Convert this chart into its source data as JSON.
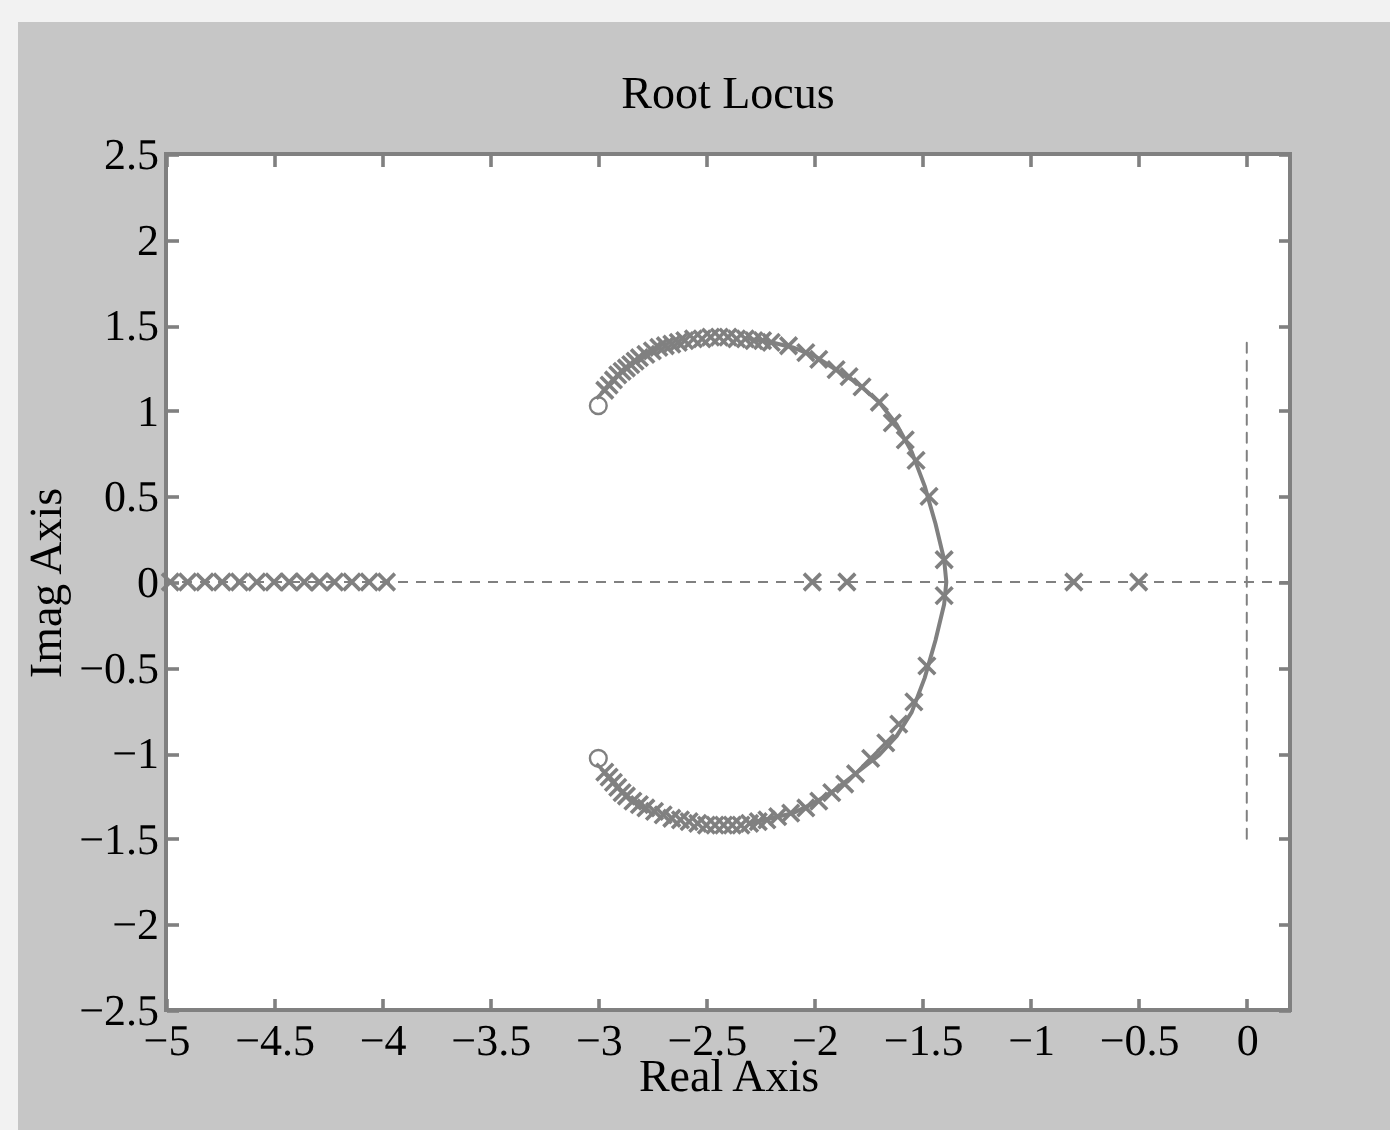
{
  "chart_data": {
    "type": "scatter",
    "title": "Root Locus",
    "xlabel": "Real Axis",
    "ylabel": "Imag Axis",
    "xlim": [
      -5,
      0.2
    ],
    "xticks": [
      -5,
      -4.5,
      -4,
      -3.5,
      -3,
      -2.5,
      -2,
      -1.5,
      -1,
      -0.5,
      0
    ],
    "ylim": [
      -2.5,
      2.5
    ],
    "yticks": [
      -2.5,
      -2,
      -1.5,
      -1,
      -0.5,
      0,
      0.5,
      1,
      1.5,
      2,
      2.5
    ],
    "ref_lines": [
      {
        "axis": "y",
        "value": 0,
        "color": "#808080",
        "line_style": "dashed"
      }
    ],
    "series": [
      {
        "color": "#808080",
        "marker": "cross",
        "x": [
          -2.97,
          -2.95,
          -2.93,
          -2.91,
          -2.89,
          -2.87,
          -2.85,
          -2.83,
          -2.81,
          -2.78,
          -2.75,
          -2.72,
          -2.69,
          -2.66,
          -2.63,
          -2.6,
          -2.56,
          -2.52,
          -2.48,
          -2.44,
          -2.4,
          -2.36,
          -2.32,
          -2.28,
          -2.24,
          -2.2,
          -2.12,
          -2.04,
          -1.98,
          -1.9,
          -1.84,
          -1.78,
          -1.7,
          -1.64,
          -1.58,
          -1.53,
          -1.47,
          -1.4,
          -1.4,
          -1.48,
          -1.54,
          -1.61,
          -1.67,
          -1.74,
          -1.81,
          -1.86,
          -1.92,
          -1.98,
          -2.04,
          -2.11,
          -2.17,
          -2.22,
          -2.26,
          -2.3,
          -2.34,
          -2.38,
          -2.42,
          -2.46,
          -2.5,
          -2.54,
          -2.58,
          -2.62,
          -2.66,
          -2.7,
          -2.74,
          -2.78,
          -2.81,
          -2.84,
          -2.87,
          -2.89,
          -2.91,
          -2.93,
          -2.95,
          -2.97,
          -4.98,
          -4.9,
          -4.82,
          -4.74,
          -4.66,
          -4.58,
          -4.5,
          -4.43,
          -4.36,
          -4.29,
          -4.22,
          -4.14,
          -4.06,
          -3.98,
          -2.01,
          -1.85,
          -0.8,
          -0.5
        ],
        "values": [
          1.12,
          1.15,
          1.18,
          1.21,
          1.23,
          1.25,
          1.27,
          1.29,
          1.31,
          1.33,
          1.35,
          1.37,
          1.38,
          1.39,
          1.4,
          1.41,
          1.42,
          1.42,
          1.43,
          1.43,
          1.43,
          1.42,
          1.42,
          1.41,
          1.41,
          1.4,
          1.38,
          1.34,
          1.3,
          1.24,
          1.2,
          1.14,
          1.05,
          0.93,
          0.83,
          0.71,
          0.5,
          0.13,
          -0.08,
          -0.49,
          -0.7,
          -0.83,
          -0.94,
          -1.03,
          -1.12,
          -1.18,
          -1.23,
          -1.28,
          -1.32,
          -1.35,
          -1.37,
          -1.39,
          -1.4,
          -1.41,
          -1.42,
          -1.42,
          -1.42,
          -1.42,
          -1.42,
          -1.41,
          -1.4,
          -1.39,
          -1.38,
          -1.36,
          -1.34,
          -1.32,
          -1.3,
          -1.28,
          -1.25,
          -1.23,
          -1.2,
          -1.17,
          -1.14,
          -1.11,
          0,
          0,
          0,
          0,
          0,
          0,
          0,
          0,
          0,
          0,
          0,
          0,
          0,
          0,
          0,
          0,
          0,
          0
        ]
      },
      {
        "color": "#808080",
        "marker": "circle",
        "x": [
          -3,
          -3
        ],
        "values": [
          1.03,
          -1.03
        ]
      },
      {
        "type": "line",
        "color": "#808080",
        "marker": "none",
        "line_style": "solid",
        "x": [
          -2.3,
          -2.2,
          -2.1,
          -2.0,
          -1.9,
          -1.8,
          -1.7,
          -1.62,
          -1.55,
          -1.49,
          -1.44,
          -1.4,
          -1.39,
          -1.4,
          -1.44,
          -1.49,
          -1.55,
          -1.62,
          -1.7,
          -1.8,
          -1.9,
          -2.0,
          -2.1,
          -2.2,
          -2.3
        ],
        "values": [
          1.42,
          1.4,
          1.37,
          1.32,
          1.24,
          1.16,
          1.05,
          0.92,
          0.76,
          0.56,
          0.34,
          0.13,
          0,
          -0.13,
          -0.34,
          -0.56,
          -0.76,
          -0.9,
          -1.01,
          -1.11,
          -1.21,
          -1.29,
          -1.35,
          -1.38,
          -1.41
        ]
      },
      {
        "type": "line",
        "color": "#808080",
        "marker": "none",
        "line_style": "dashed",
        "x": [
          0,
          0
        ],
        "values": [
          -1.5,
          1.42
        ]
      }
    ]
  }
}
